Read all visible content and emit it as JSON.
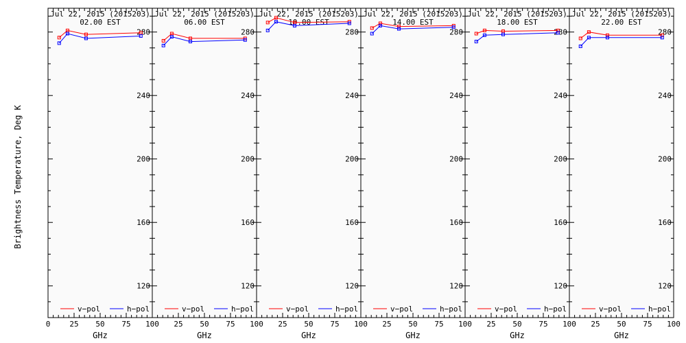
{
  "chart_data": {
    "type": "line",
    "ylabel": "Brightness Temperature, Deg K",
    "xlabel": "GHz",
    "xlim": [
      0,
      100
    ],
    "ylim": [
      100,
      295
    ],
    "x_ticks": [
      0,
      25,
      50,
      75,
      100
    ],
    "x_tick_labels": [
      "0",
      "25",
      "50",
      "75",
      "100"
    ],
    "y_ticks": [
      120,
      160,
      200,
      240,
      280
    ],
    "grid": false,
    "legend": {
      "placement": "bottom",
      "entries": [
        {
          "label": "v−pol",
          "color": "#ff0000"
        },
        {
          "label": "h−pol",
          "color": "#0000ff"
        }
      ]
    },
    "panels": [
      {
        "title_line1": "Jul 22, 2015 (2015203)",
        "title_line2": "02.00 EST",
        "series": [
          {
            "name": "v−pol",
            "color": "#ff0000",
            "x": [
              10.7,
              18.7,
              36.5,
              89.0
            ],
            "y": [
              276.5,
              281.0,
              278.5,
              279.5
            ]
          },
          {
            "name": "h−pol",
            "color": "#0000ff",
            "x": [
              10.7,
              18.7,
              36.5,
              89.0
            ],
            "y": [
              273.0,
              279.0,
              276.0,
              277.5
            ]
          }
        ]
      },
      {
        "title_line1": "Jul 22, 2015 (2015203)",
        "title_line2": "06.00 EST",
        "series": [
          {
            "name": "v−pol",
            "color": "#ff0000",
            "x": [
              10.7,
              18.7,
              36.5,
              89.0
            ],
            "y": [
              274.5,
              279.0,
              276.0,
              276.0
            ]
          },
          {
            "name": "h−pol",
            "color": "#0000ff",
            "x": [
              10.7,
              18.7,
              36.5,
              89.0
            ],
            "y": [
              271.5,
              277.0,
              274.0,
              275.0
            ]
          }
        ]
      },
      {
        "title_line1": "Jul 22, 2015 (2015203)",
        "title_line2": "10.00 EST",
        "series": [
          {
            "name": "v−pol",
            "color": "#ff0000",
            "x": [
              10.7,
              18.7,
              36.5,
              89.0
            ],
            "y": [
              286.0,
              289.0,
              286.0,
              286.5
            ]
          },
          {
            "name": "h−pol",
            "color": "#0000ff",
            "x": [
              10.7,
              18.7,
              36.5,
              89.0
            ],
            "y": [
              281.0,
              286.5,
              284.0,
              285.5
            ]
          }
        ]
      },
      {
        "title_line1": "Jul 22, 2015 (2015203)",
        "title_line2": "14.00 EST",
        "series": [
          {
            "name": "v−pol",
            "color": "#ff0000",
            "x": [
              10.7,
              18.7,
              36.5,
              89.0
            ],
            "y": [
              282.5,
              285.5,
              283.5,
              284.0
            ]
          },
          {
            "name": "h−pol",
            "color": "#0000ff",
            "x": [
              10.7,
              18.7,
              36.5,
              89.0
            ],
            "y": [
              279.0,
              284.0,
              282.0,
              283.0
            ]
          }
        ]
      },
      {
        "title_line1": "Jul 22, 2015 (2015203)",
        "title_line2": "18.00 EST",
        "series": [
          {
            "name": "v−pol",
            "color": "#ff0000",
            "x": [
              10.7,
              18.7,
              36.5,
              89.0
            ],
            "y": [
              279.0,
              281.0,
              280.5,
              281.0
            ]
          },
          {
            "name": "h−pol",
            "color": "#0000ff",
            "x": [
              10.7,
              18.7,
              36.5,
              89.0
            ],
            "y": [
              274.0,
              278.0,
              278.5,
              279.5
            ]
          }
        ]
      },
      {
        "title_line1": "Jul 22, 2015 (2015203)",
        "title_line2": "22.00 EST",
        "series": [
          {
            "name": "v−pol",
            "color": "#ff0000",
            "x": [
              10.7,
              18.7,
              36.5,
              89.0
            ],
            "y": [
              276.0,
              280.0,
              278.0,
              278.0
            ]
          },
          {
            "name": "h−pol",
            "color": "#0000ff",
            "x": [
              10.7,
              18.7,
              36.5,
              89.0
            ],
            "y": [
              271.0,
              276.5,
              276.5,
              276.5
            ]
          }
        ]
      }
    ]
  }
}
